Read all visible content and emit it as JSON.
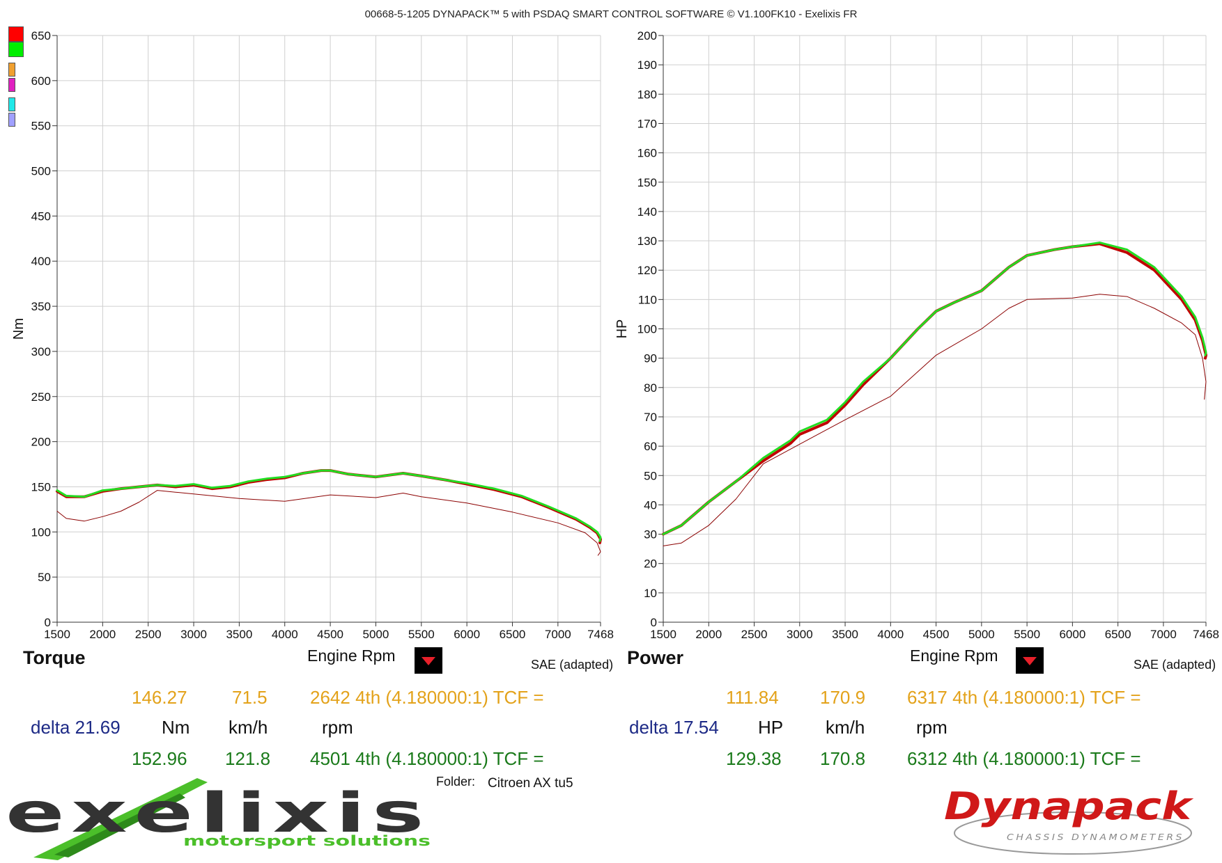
{
  "header": {
    "title": "00668-5-1205 DYNAPACK™ 5 with PSDAQ SMART CONTROL SOFTWARE © V1.100FK10 - Exelixis FR"
  },
  "legend_swatches": [
    {
      "color": "#ff0000"
    },
    {
      "color": "#00ee00"
    },
    {
      "color": "#f0a030"
    },
    {
      "color": "#e020c0"
    },
    {
      "color": "#20e8e8"
    },
    {
      "color": "#a0a0ff"
    }
  ],
  "torque_panel": {
    "title": "Torque",
    "xlabel": "Engine Rpm",
    "correction": "SAE (adapted)",
    "row1": {
      "value": "146.27",
      "speed": "71.5",
      "rpm_gear": "2642  4th (4.180000:1) TCF ="
    },
    "row2": {
      "delta": "delta 21.69",
      "unit": "Nm",
      "speed_unit": "km/h",
      "rpm_unit": "rpm"
    },
    "row3": {
      "value": "152.96",
      "speed": "121.8",
      "rpm_gear": "4501  4th (4.180000:1) TCF ="
    }
  },
  "power_panel": {
    "title": "Power",
    "xlabel": "Engine Rpm",
    "correction": "SAE (adapted)",
    "row1": {
      "value": "111.84",
      "speed": "170.9",
      "rpm_gear": "6317  4th (4.180000:1) TCF ="
    },
    "row2": {
      "delta": "delta 17.54",
      "unit": "HP",
      "speed_unit": "km/h",
      "rpm_unit": "rpm"
    },
    "row3": {
      "value": "129.38",
      "speed": "170.8",
      "rpm_gear": "6312  4th (4.180000:1) TCF ="
    }
  },
  "folder": {
    "label": "Folder:",
    "value": "Citroen AX tu5"
  },
  "logos": {
    "exelixis_text": "exelixis",
    "exelixis_tagline": "motorsport solutions",
    "dynapack_text": "Dynapack",
    "dynapack_tagline": "CHASSIS DYNAMOMETERS"
  },
  "chart_data": [
    {
      "type": "line",
      "ylabel": "Nm",
      "xlabel": "Engine Rpm",
      "xlim": [
        1500,
        7468
      ],
      "ylim": [
        0,
        650
      ],
      "xticks": [
        1500,
        2000,
        2500,
        3000,
        3500,
        4000,
        4500,
        5000,
        5500,
        6000,
        6500,
        7000,
        7468
      ],
      "yticks": [
        0,
        50,
        100,
        150,
        200,
        250,
        300,
        350,
        400,
        450,
        500,
        550,
        600,
        650
      ],
      "grid": true,
      "series": [
        {
          "color": "#c00000",
          "width": 4,
          "x": [
            1500,
            1600,
            1800,
            2000,
            2200,
            2400,
            2600,
            2800,
            3000,
            3200,
            3400,
            3600,
            3800,
            4000,
            4200,
            4400,
            4500,
            4700,
            5000,
            5300,
            5500,
            5800,
            6000,
            6300,
            6600,
            6900,
            7200,
            7350,
            7430,
            7468,
            7460
          ],
          "y": [
            145,
            139,
            139,
            145,
            148,
            150,
            152,
            150,
            152,
            148,
            150,
            155,
            158,
            160,
            165,
            168,
            168,
            164,
            161,
            165,
            162,
            157,
            153,
            147,
            139,
            127,
            114,
            105,
            99,
            92,
            88
          ]
        },
        {
          "color": "#22dd22",
          "width": 3,
          "x": [
            1500,
            1600,
            1800,
            2000,
            2200,
            2400,
            2600,
            2800,
            3000,
            3200,
            3400,
            3600,
            3800,
            4000,
            4200,
            4400,
            4500,
            4700,
            5000,
            5300,
            5500,
            5800,
            6000,
            6300,
            6600,
            6900,
            7200,
            7350,
            7430,
            7468,
            7460
          ],
          "y": [
            146,
            140,
            139,
            146,
            148,
            150,
            152,
            151,
            153,
            149,
            151,
            156,
            159,
            161,
            165,
            168,
            168,
            164,
            161,
            165,
            162,
            157,
            154,
            148,
            140,
            128,
            115,
            106,
            100,
            94,
            90
          ]
        },
        {
          "color": "#8b0000",
          "width": 1,
          "x": [
            1500,
            1600,
            1800,
            2000,
            2200,
            2400,
            2600,
            2800,
            3000,
            3500,
            4000,
            4500,
            5000,
            5300,
            5500,
            6000,
            6500,
            7000,
            7300,
            7430,
            7468,
            7440
          ],
          "y": [
            123,
            115,
            112,
            117,
            123,
            133,
            146,
            144,
            142,
            137,
            134,
            141,
            138,
            143,
            139,
            132,
            122,
            110,
            99,
            88,
            78,
            74
          ]
        }
      ]
    },
    {
      "type": "line",
      "ylabel": "HP",
      "xlabel": "Engine Rpm",
      "xlim": [
        1500,
        7468
      ],
      "ylim": [
        0,
        200
      ],
      "xticks": [
        1500,
        2000,
        2500,
        3000,
        3500,
        4000,
        4500,
        5000,
        5500,
        6000,
        6500,
        7000,
        7468
      ],
      "yticks": [
        0,
        10,
        20,
        30,
        40,
        50,
        60,
        70,
        80,
        90,
        100,
        110,
        120,
        130,
        140,
        150,
        160,
        170,
        180,
        190,
        200
      ],
      "grid": true,
      "series": [
        {
          "color": "#c00000",
          "width": 4,
          "x": [
            1500,
            1700,
            2000,
            2300,
            2600,
            2900,
            3000,
            3300,
            3500,
            3700,
            4000,
            4300,
            4500,
            4700,
            5000,
            5300,
            5500,
            5800,
            6000,
            6300,
            6600,
            6900,
            7200,
            7350,
            7430,
            7468,
            7460
          ],
          "y": [
            30,
            33,
            41,
            48,
            55,
            61,
            64,
            68,
            74,
            81,
            90,
            100,
            106,
            109,
            113,
            121,
            125,
            127,
            128,
            129,
            126,
            120,
            110,
            103,
            96,
            91,
            90
          ]
        },
        {
          "color": "#22dd22",
          "width": 3,
          "x": [
            1500,
            1700,
            2000,
            2300,
            2600,
            2900,
            3000,
            3300,
            3500,
            3700,
            4000,
            4300,
            4500,
            4700,
            5000,
            5300,
            5500,
            5800,
            6000,
            6300,
            6600,
            6900,
            7200,
            7350,
            7430,
            7468,
            7460
          ],
          "y": [
            30,
            33,
            41,
            48,
            56,
            62,
            65,
            69,
            75,
            82,
            90,
            100,
            106,
            109,
            113,
            121,
            125,
            127,
            128,
            129.4,
            127,
            121,
            111,
            104,
            97,
            92,
            91
          ]
        },
        {
          "color": "#8b0000",
          "width": 1,
          "x": [
            1500,
            1700,
            2000,
            2300,
            2600,
            2900,
            3200,
            3500,
            4000,
            4500,
            5000,
            5300,
            5500,
            6000,
            6300,
            6600,
            6900,
            7200,
            7350,
            7430,
            7468,
            7450
          ],
          "y": [
            26,
            27,
            33,
            42,
            54,
            59,
            64,
            69,
            77,
            91,
            100,
            107,
            110,
            110.5,
            111.8,
            111,
            107,
            102,
            98,
            90,
            82,
            76
          ]
        }
      ]
    }
  ]
}
